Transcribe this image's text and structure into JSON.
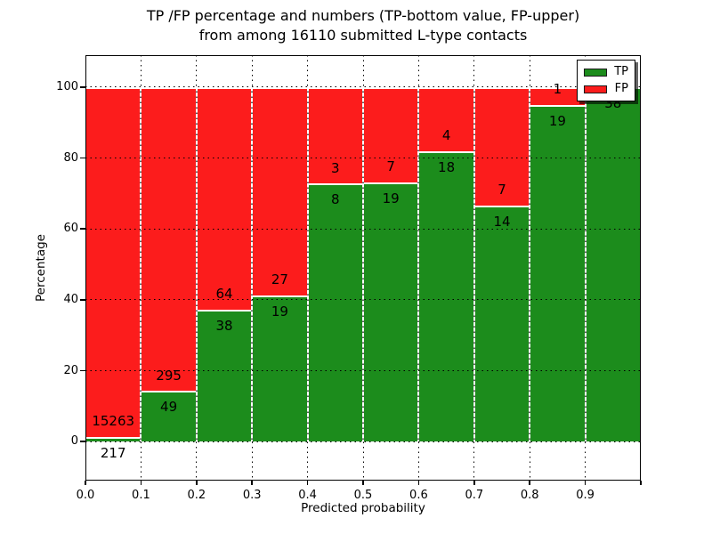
{
  "chart_data": {
    "type": "bar",
    "variant": "stacked-percentage",
    "title": "TP /FP percentage and numbers (TP-bottom value, FP-upper) from among 16110 submitted L-type contacts",
    "title_line1": "TP /FP percentage and numbers (TP-bottom value, FP-upper)",
    "title_line2": "from among 16110 submitted L-type contacts",
    "xlabel": "Predicted probability",
    "ylabel": "Percentage",
    "total_contacts": 16110,
    "xlim": [
      0.0,
      1.0
    ],
    "ylim": [
      -11,
      109
    ],
    "grid": true,
    "xtick_labels": [
      "0.0",
      "0.1",
      "0.2",
      "0.3",
      "0.4",
      "0.5",
      "0.6",
      "0.7",
      "0.8",
      "0.9"
    ],
    "ytick_values": [
      0,
      20,
      40,
      60,
      80,
      100
    ],
    "categories": [
      "0.0-0.1",
      "0.1-0.2",
      "0.2-0.3",
      "0.3-0.4",
      "0.4-0.5",
      "0.5-0.6",
      "0.6-0.7",
      "0.7-0.8",
      "0.8-0.9",
      "0.9-1.0"
    ],
    "series": [
      {
        "name": "TP",
        "position": "bottom",
        "color": "#1C8C1C",
        "values": [
          217,
          49,
          38,
          19,
          8,
          19,
          18,
          14,
          19,
          38
        ]
      },
      {
        "name": "FP",
        "position": "top",
        "color": "#FC1C1C",
        "values": [
          15263,
          295,
          64,
          27,
          3,
          7,
          4,
          7,
          1,
          0
        ]
      }
    ],
    "tp_percent_of_bin": [
      1.4,
      14.2,
      37.3,
      41.3,
      72.7,
      73.1,
      81.8,
      66.7,
      95.0,
      100.0
    ],
    "legend": {
      "position": "upper-right",
      "entries": [
        {
          "label": "TP",
          "color": "#1C8C1C"
        },
        {
          "label": "FP",
          "color": "#FC1C1C"
        }
      ]
    }
  }
}
